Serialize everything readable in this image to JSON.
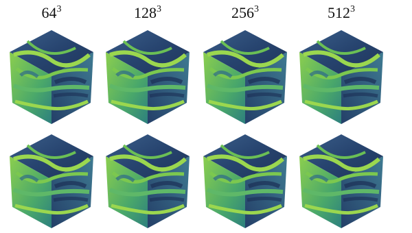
{
  "headers": [
    {
      "base": "64",
      "exponent": "3"
    },
    {
      "base": "128",
      "exponent": "3"
    },
    {
      "base": "256",
      "exponent": "3"
    },
    {
      "base": "512",
      "exponent": "3"
    }
  ]
}
